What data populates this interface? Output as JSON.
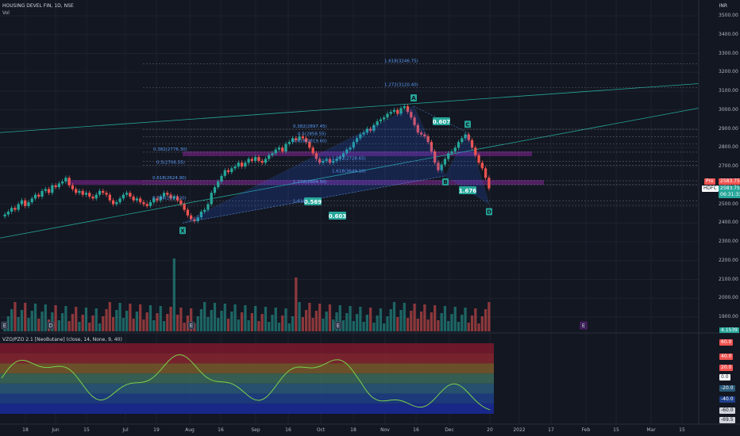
{
  "header": {
    "symbol_line": "HOUSING DEVEL FIN, 1D, NSE",
    "volume_label": "Vol",
    "currency": "INR"
  },
  "oscillator": {
    "title": "VZO/PZO 2.1 [NeoButane] (close, 14, None, 9, 40)",
    "bands": [
      {
        "color": "#7b1a2c"
      },
      {
        "color": "#8a2630"
      },
      {
        "color": "#7a5a2c"
      },
      {
        "color": "#3d6a5a"
      },
      {
        "color": "#2a5a7a"
      },
      {
        "color": "#1f3f8a"
      },
      {
        "color": "#1a2a9a"
      }
    ],
    "line_color": "#7bd14b"
  },
  "price_axis": {
    "labels": [
      "3500.00",
      "3400.00",
      "3300.00",
      "3200.00",
      "3100.00",
      "3000.00",
      "2900.00",
      "2800.00",
      "2700.00",
      "2600.00",
      "2500.00",
      "2400.00",
      "2300.00",
      "2200.00",
      "2100.00",
      "2000.00",
      "1900.00"
    ],
    "tags": {
      "pre_label": "Pre",
      "pre_value": "2583.75",
      "symbol_label": "HDFC",
      "symbol_value": "2583.75",
      "countdown": "06:31:33"
    }
  },
  "osc_axis": {
    "top_label": "4.1539",
    "tags": [
      "60.0",
      "40.0",
      "20.0",
      "0.0",
      "-20.0",
      "-40.0",
      "-60.0",
      "-69.5"
    ]
  },
  "time_axis": [
    "18",
    "Jun",
    "15",
    "Jul",
    "19",
    "Aug",
    "16",
    "Sep",
    "16",
    "Oct",
    "18",
    "Nov",
    "16",
    "Dec",
    "20",
    "2022",
    "17",
    "Feb",
    "15",
    "Mar",
    "15"
  ],
  "pattern": {
    "points": [
      "X",
      "A",
      "B",
      "C",
      "D"
    ],
    "ratios": [
      "0.607",
      "0.569",
      "0.603",
      "1.676"
    ]
  },
  "fib_labels": [
    "1.618(3246.75)",
    "1.272(3120.40)",
    "0.382(2897.45)",
    "0.5(2858.55)",
    "0.618(2819.60)",
    "0.382(2776.30)",
    "0.5(2706.55)",
    "1.272(2728.65)",
    "1.618(3649.10)",
    "0.618(2624.90)",
    "1.272(2604.50)",
    "0.786(2517.20)",
    "1.618"
  ],
  "events": [
    "E",
    "D",
    "E",
    "E",
    "E"
  ],
  "colors": {
    "up": "#26a69a",
    "down": "#ef5350",
    "pattern_fill": "#2962ff",
    "fib": "#5b9cf6",
    "zone": "#9c27b0"
  },
  "chart_data": {
    "type": "candlestick",
    "title": "HOUSING DEVEL FIN, 1D, NSE",
    "ylim": [
      1850,
      3560
    ],
    "closes": [
      2445,
      2460,
      2480,
      2470,
      2500,
      2520,
      2490,
      2510,
      2530,
      2550,
      2540,
      2570,
      2580,
      2560,
      2600,
      2590,
      2610,
      2620,
      2640,
      2600,
      2580,
      2560,
      2570,
      2550,
      2560,
      2540,
      2530,
      2550,
      2570,
      2560,
      2550,
      2520,
      2500,
      2510,
      2530,
      2550,
      2560,
      2540,
      2520,
      2530,
      2510,
      2500,
      2490,
      2510,
      2530,
      2520,
      2540,
      2560,
      2550,
      2530,
      2540,
      2520,
      2500,
      2470,
      2440,
      2420,
      2410,
      2430,
      2460,
      2470,
      2500,
      2560,
      2590,
      2620,
      2650,
      2680,
      2670,
      2690,
      2700,
      2720,
      2700,
      2720,
      2740,
      2730,
      2750,
      2730,
      2720,
      2740,
      2760,
      2770,
      2790,
      2800,
      2780,
      2820,
      2830,
      2850,
      2840,
      2860,
      2850,
      2830,
      2800,
      2770,
      2740,
      2720,
      2730,
      2740,
      2720,
      2730,
      2740,
      2750,
      2770,
      2790,
      2800,
      2830,
      2850,
      2870,
      2880,
      2900,
      2890,
      2920,
      2940,
      2950,
      2960,
      2980,
      2990,
      3000,
      2980,
      3010,
      3020,
      2990,
      2960,
      2920,
      2880,
      2870,
      2860,
      2830,
      2780,
      2720,
      2680,
      2710,
      2740,
      2770,
      2780,
      2800,
      2830,
      2850,
      2870,
      2840,
      2800,
      2760,
      2720,
      2690,
      2640,
      2583.75
    ],
    "volumes": [
      1,
      1,
      1,
      1,
      1,
      1,
      1,
      1,
      1,
      1,
      1,
      1,
      1,
      1,
      1,
      1,
      1,
      1,
      1,
      1,
      1,
      1,
      1,
      1,
      1,
      1,
      1,
      1,
      1,
      1,
      1,
      1,
      1,
      1,
      1,
      1,
      1,
      1,
      1,
      1,
      1,
      1,
      1,
      1,
      1,
      1,
      1,
      1,
      1,
      1,
      1,
      1,
      1,
      1,
      1,
      1,
      1,
      1,
      1,
      1,
      1,
      1,
      1,
      1,
      1,
      1,
      1,
      1,
      1,
      1,
      1,
      1,
      1,
      1,
      1,
      1,
      1,
      1,
      1,
      1,
      1,
      1,
      1,
      1,
      1,
      1,
      1,
      1,
      1,
      1,
      1,
      1,
      1,
      1,
      1,
      1,
      1,
      1,
      1,
      1,
      1,
      1,
      1,
      1,
      1,
      1,
      1,
      1,
      1,
      1,
      1,
      1,
      1,
      1,
      1,
      1,
      1,
      1,
      1,
      1,
      1,
      1,
      1,
      1,
      1,
      1,
      1,
      1,
      1,
      1,
      1,
      1,
      1,
      1,
      1,
      1,
      1,
      1,
      1,
      1,
      1,
      1,
      1,
      1
    ],
    "last_price": 2583.75
  }
}
